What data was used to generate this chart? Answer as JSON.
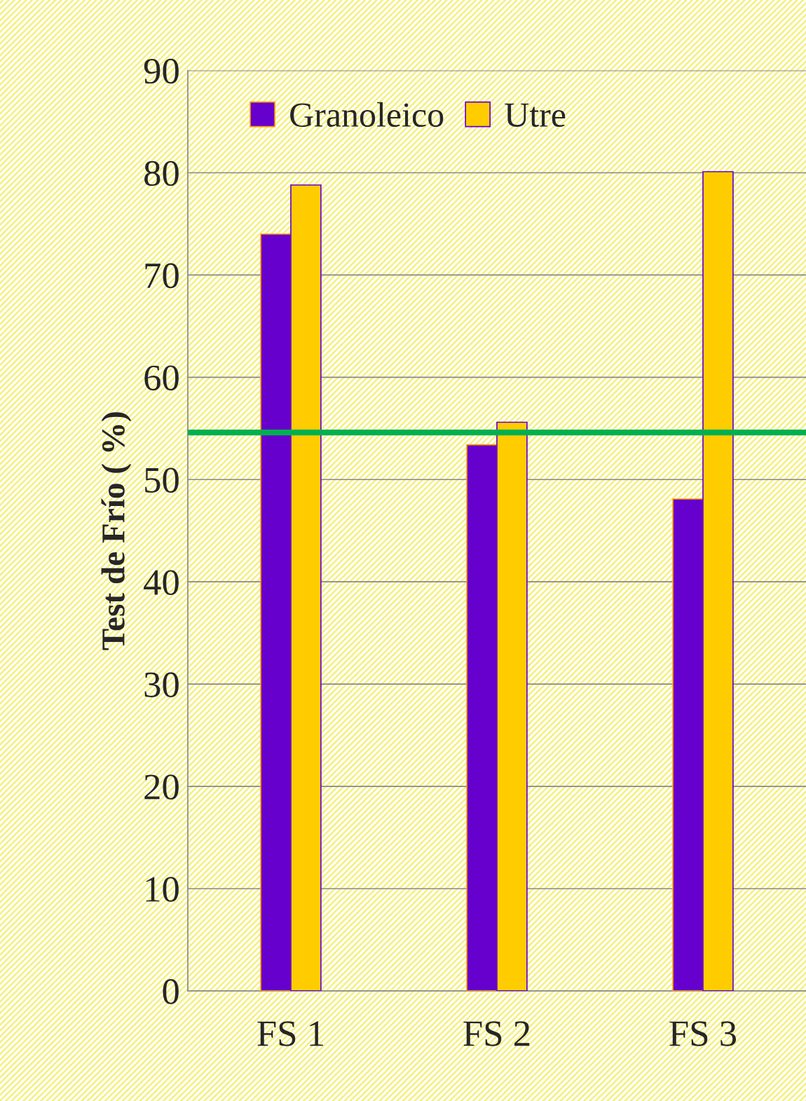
{
  "chart_data": {
    "type": "bar",
    "ylabel": "Test de Frío ( %)",
    "categories": [
      "FS 1",
      "FS 2",
      "FS 3"
    ],
    "series": [
      {
        "name": "Granoleico",
        "color": "#6600cc",
        "values": [
          74,
          53.4,
          48.1
        ]
      },
      {
        "name": "Utre",
        "color": "#ffcc00",
        "values": [
          78.8,
          55.6,
          80.1
        ]
      }
    ],
    "ylim": [
      0,
      90
    ],
    "yticks": [
      0,
      10,
      20,
      30,
      40,
      50,
      60,
      70,
      80,
      90
    ],
    "ref_lines": [
      {
        "axis": "y",
        "value": 54.6,
        "color": "#00b050",
        "line_style": "solid"
      }
    ],
    "grid": "y",
    "legend": "top left"
  }
}
